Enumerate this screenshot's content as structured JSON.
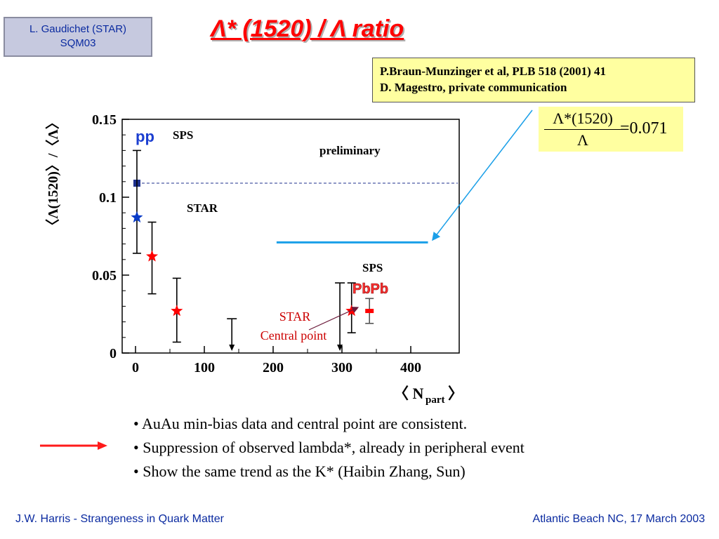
{
  "author_box": {
    "line1": "L. Gaudichet (STAR)",
    "line2": "SQM03"
  },
  "slide_title": "Λ* (1520) / Λ ratio",
  "references": {
    "line1": "P.Braun-Munzinger et al, PLB 518 (2001) 41",
    "line2": "D. Magestro, private communication"
  },
  "formula": {
    "numerator": "Λ*(1520)",
    "denominator": "Λ",
    "value": "=0.071"
  },
  "bullets": [
    "• AuAu min-bias data and central point are consistent.",
    "• Suppression of observed lambda*, already in peripheral event",
    "• Show the same trend as the K* (Haibin Zhang, Sun)"
  ],
  "footer": {
    "left": "J.W. Harris - Strangeness in Quark Matter",
    "right": "Atlantic Beach NC, 17 March 2003"
  },
  "colors": {
    "title": "#ff0000",
    "star_blue": "#0a3cc8",
    "star_red": "#ff0000",
    "line_blue": "#1a9fe8",
    "arrow_red": "#ff1a1a"
  },
  "chart_data": {
    "type": "scatter",
    "ylabel": "〈Λ(1520)〉/〈Λ〉",
    "xlabel": "〈 N",
    "xlabel_sub": "part",
    "xlabel_close": "〉",
    "x_ticks": [
      "0",
      "100",
      "200",
      "300",
      "400"
    ],
    "y_ticks": [
      "0",
      "0.05",
      "0.1",
      "0.15"
    ],
    "xlim": [
      -10,
      450
    ],
    "ylim": [
      0,
      0.15
    ],
    "annotations": {
      "pp": "pp",
      "sps_top": "SPS",
      "preliminary": "preliminary",
      "star": "STAR",
      "sps_mid": "SPS",
      "pbpb": "PbPb",
      "star_central_line1": "STAR",
      "star_central_line2": "Central point"
    },
    "series": [
      {
        "points": [
          {
            "x": 2,
            "y": 0.109
          }
        ]
      },
      {
        "points": [
          {
            "x": 2,
            "y": 0.087,
            "ylo": 0.064,
            "yhi": 0.13
          }
        ]
      },
      {
        "points": [
          {
            "x": 24,
            "y": 0.062,
            "ylo": 0.038,
            "yhi": 0.084
          },
          {
            "x": 60,
            "y": 0.027,
            "ylo": 0.007,
            "yhi": 0.048
          },
          {
            "x": 314,
            "y": 0.027,
            "ylo": 0.013,
            "yhi": 0.045
          }
        ]
      },
      {
        "points": [
          {
            "x": 340,
            "y": 0.027,
            "ylo": 0.019,
            "yhi": 0.035
          }
        ]
      }
    ],
    "upper_limits": [
      {
        "x": 140,
        "y": 0.022
      },
      {
        "x": 297,
        "y": 0.045
      }
    ],
    "reference_lines": {
      "pp_dashed_y": 0.109,
      "sps_solid_y": 0.071,
      "sps_solid_xrange": [
        205,
        425
      ]
    }
  }
}
